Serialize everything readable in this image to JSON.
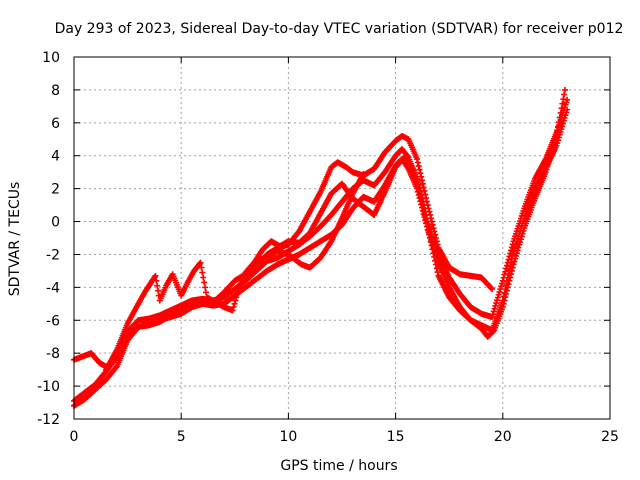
{
  "chart_data": {
    "type": "scatter",
    "title": "Day 293 of 2023, Sidereal Day-to-day VTEC variation (SDTVAR) for receiver p012",
    "xlabel": "GPS time / hours",
    "ylabel": "SDTVAR / TECUs",
    "xlim": [
      0,
      25
    ],
    "ylim": [
      -12,
      10
    ],
    "xticks": [
      "0",
      "5",
      "10",
      "15",
      "20",
      "25"
    ],
    "yticks": [
      "-12",
      "-10",
      "-8",
      "-6",
      "-4",
      "-2",
      "0",
      "2",
      "4",
      "6",
      "8",
      "10"
    ],
    "grid": true,
    "marker": "+",
    "color": "#ff0000",
    "series": [
      {
        "x": [
          0.0,
          0.5,
          1.0,
          1.5,
          2.0,
          2.5,
          3.0,
          3.5,
          4.0,
          4.5,
          5.0,
          5.5,
          6.0,
          6.5,
          7.0,
          7.5,
          8.0,
          8.5,
          9.0,
          9.5,
          10.0,
          10.5,
          11.0,
          11.5,
          12.0,
          12.5,
          13.0,
          13.5,
          14.0,
          14.5,
          15.0,
          15.3,
          15.6,
          16.0,
          16.5,
          17.0,
          17.5,
          18.0,
          18.5,
          19.0,
          19.5,
          20.0,
          20.5,
          21.0,
          21.5,
          22.0,
          22.5,
          23.0
        ],
        "y": [
          -11.2,
          -10.8,
          -10.2,
          -9.6,
          -8.8,
          -7.2,
          -6.4,
          -6.2,
          -6.0,
          -5.8,
          -5.6,
          -5.2,
          -5.0,
          -5.1,
          -5.0,
          -4.5,
          -4.0,
          -3.5,
          -3.0,
          -2.6,
          -2.3,
          -2.0,
          -1.6,
          -1.2,
          -0.8,
          -0.2,
          0.8,
          1.5,
          1.2,
          2.2,
          3.4,
          3.8,
          3.2,
          2.0,
          -0.5,
          -2.5,
          -4.0,
          -5.2,
          -6.0,
          -6.3,
          -6.6,
          -4.8,
          -1.8,
          0.2,
          2.0,
          3.2,
          4.6,
          6.8
        ]
      },
      {
        "x": [
          0.0,
          0.5,
          1.0,
          1.5,
          2.0,
          2.5,
          3.0,
          3.5,
          4.0,
          4.5,
          5.0,
          5.5,
          6.0,
          6.5,
          7.0,
          7.5,
          8.0,
          8.5,
          9.0,
          9.5,
          10.0,
          10.5,
          11.0,
          11.5,
          12.0,
          12.5,
          13.0,
          13.5,
          14.0,
          14.5,
          15.0,
          15.3,
          15.6,
          16.0,
          16.5,
          17.0,
          17.5,
          18.0,
          18.5,
          19.0,
          19.5,
          20.0,
          20.5,
          21.0,
          21.5,
          22.0,
          22.5,
          23.0
        ],
        "y": [
          -10.9,
          -10.4,
          -9.9,
          -9.1,
          -8.2,
          -6.7,
          -6.0,
          -5.9,
          -5.7,
          -5.4,
          -5.1,
          -4.8,
          -4.7,
          -4.8,
          -4.6,
          -4.1,
          -3.6,
          -3.0,
          -2.4,
          -2.2,
          -1.8,
          -1.4,
          -0.9,
          -0.3,
          0.4,
          1.2,
          2.0,
          2.5,
          2.2,
          3.0,
          4.0,
          4.4,
          3.9,
          2.6,
          0.0,
          -2.0,
          -3.4,
          -4.4,
          -5.2,
          -5.6,
          -5.8,
          -3.6,
          -1.2,
          0.8,
          2.6,
          3.8,
          5.4,
          7.4
        ]
      },
      {
        "x": [
          0.0,
          0.4,
          0.8,
          1.2,
          1.6,
          2.0,
          2.5,
          3.0,
          3.5,
          4.0,
          4.5,
          5.0,
          5.5,
          6.0,
          6.5,
          7.0,
          7.5,
          8.0,
          8.5,
          9.0,
          9.5,
          10.0,
          10.5,
          11.0,
          11.5,
          12.0,
          12.3,
          12.7,
          13.0,
          13.5,
          14.0,
          14.5,
          15.0,
          15.3,
          15.6,
          16.0,
          16.5,
          17.0,
          17.5,
          18.0,
          18.5,
          19.0,
          19.5
        ],
        "y": [
          -8.4,
          -8.2,
          -8.0,
          -8.6,
          -8.9,
          -8.2,
          -7.0,
          -6.4,
          -6.3,
          -6.1,
          -5.7,
          -5.4,
          -5.1,
          -4.8,
          -4.9,
          -4.3,
          -3.6,
          -3.2,
          -2.8,
          -2.0,
          -1.6,
          -1.4,
          -0.6,
          0.6,
          1.8,
          3.3,
          3.6,
          3.3,
          3.0,
          2.8,
          3.2,
          4.2,
          4.9,
          5.2,
          5.0,
          3.8,
          1.0,
          -1.6,
          -2.8,
          -3.2,
          -3.3,
          -3.4,
          -4.1
        ]
      },
      {
        "x": [
          1.5,
          2.0,
          2.5,
          3.0,
          3.3,
          3.6,
          3.8,
          4.0,
          4.3,
          4.6,
          5.0,
          5.3,
          5.6,
          5.9,
          6.2,
          6.6,
          7.0,
          7.4,
          7.7,
          8.0,
          8.4,
          8.8,
          9.2,
          9.6,
          10.0,
          10.5,
          11.0,
          11.5,
          12.0,
          12.5,
          13.0,
          13.5,
          14.0,
          14.5,
          15.0,
          15.4,
          15.8,
          16.2,
          16.6,
          17.0,
          17.5,
          18.0,
          18.5,
          19.0,
          19.3,
          19.6,
          20.0,
          20.5,
          21.0,
          21.5,
          22.0,
          22.5,
          22.9
        ],
        "y": [
          -9.0,
          -7.8,
          -6.2,
          -5.0,
          -4.3,
          -3.7,
          -3.3,
          -4.8,
          -3.9,
          -3.2,
          -4.5,
          -3.7,
          -3.0,
          -2.5,
          -4.6,
          -4.9,
          -5.2,
          -5.4,
          -4.0,
          -3.1,
          -2.5,
          -1.7,
          -1.2,
          -1.5,
          -1.2,
          -1.3,
          -0.7,
          0.5,
          1.7,
          2.3,
          1.4,
          0.9,
          0.4,
          1.8,
          3.3,
          3.9,
          3.2,
          1.3,
          -1.0,
          -3.3,
          -4.6,
          -5.4,
          -6.0,
          -6.5,
          -7.0,
          -6.6,
          -5.2,
          -2.6,
          -0.4,
          1.4,
          3.0,
          5.2,
          8.0
        ]
      },
      {
        "x": [
          8.5,
          9.0,
          9.5,
          10.0,
          10.3,
          10.6,
          11.0,
          11.5,
          12.0,
          12.5,
          13.0,
          13.5
        ],
        "y": [
          -2.5,
          -2.1,
          -1.8,
          -2.0,
          -2.3,
          -2.6,
          -2.8,
          -2.2,
          -1.2,
          0.2,
          1.7,
          2.9
        ]
      }
    ]
  }
}
